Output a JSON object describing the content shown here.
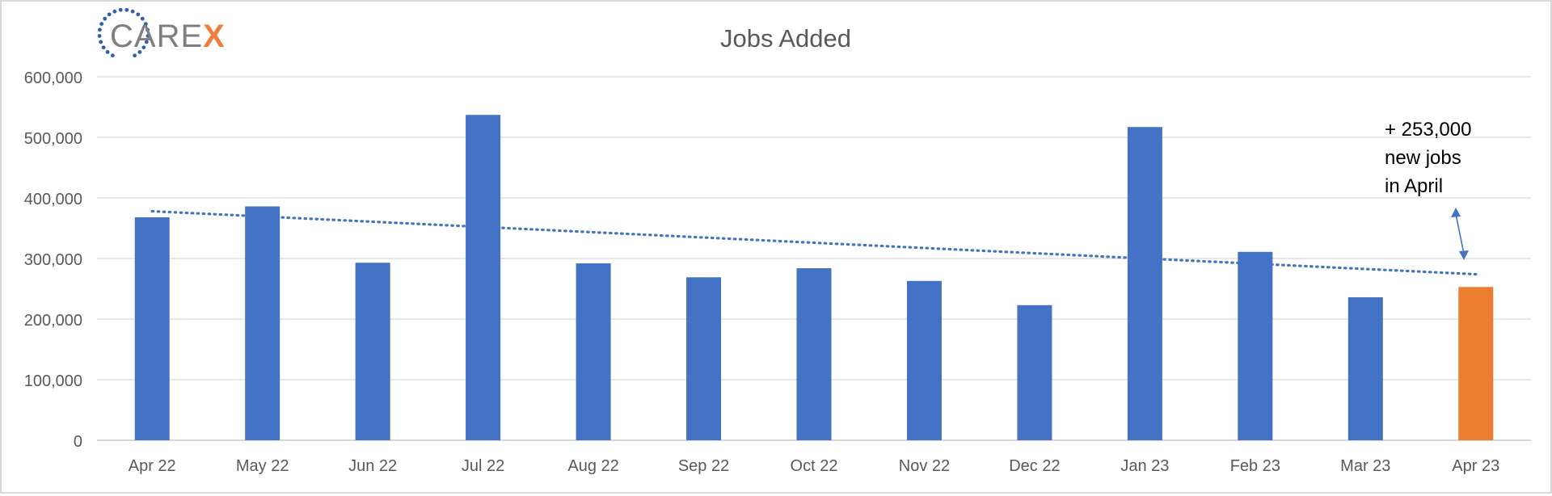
{
  "logo": {
    "text": "CAREX",
    "main_text": "CARE",
    "accent_text": "X",
    "main_color": "#7f7f7f",
    "accent_color": "#ef7d3d",
    "ring_color": "#2e5fad"
  },
  "chart_data": {
    "type": "bar",
    "title": "Jobs Added",
    "xlabel": "",
    "ylabel": "",
    "categories": [
      "Apr 22",
      "May 22",
      "Jun 22",
      "Jul 22",
      "Aug 22",
      "Sep 22",
      "Oct 22",
      "Nov 22",
      "Dec 22",
      "Jan 23",
      "Feb 23",
      "Mar 23",
      "Apr 23"
    ],
    "values": [
      368000,
      386000,
      293000,
      537000,
      292000,
      269000,
      284000,
      263000,
      223000,
      517000,
      311000,
      236000,
      253000
    ],
    "ylim": [
      0,
      600000
    ],
    "yticks": [
      0,
      100000,
      200000,
      300000,
      400000,
      500000,
      600000
    ],
    "ytick_labels": [
      "0",
      "100,000",
      "200,000",
      "300,000",
      "400,000",
      "500,000",
      "600,000"
    ],
    "bar_color": "#4472c4",
    "highlight_color": "#ed7d31",
    "highlight_index": 12,
    "trendline": {
      "style": "dotted-linear",
      "start": 378000,
      "end": 274000,
      "color": "#4472c4"
    },
    "grid": true,
    "legend": "none",
    "annotation": {
      "lines": [
        "+ 253,000",
        "new jobs",
        "in April"
      ]
    }
  }
}
